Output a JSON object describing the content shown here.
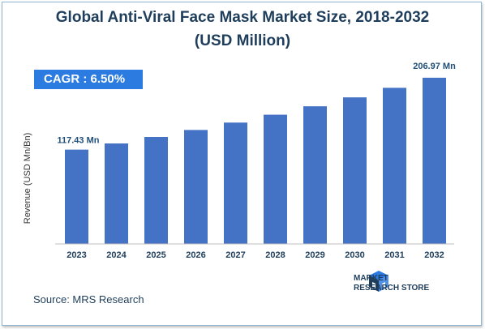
{
  "chart_data": {
    "type": "bar",
    "title": "Global Anti-Viral Face Mask Market Size, 2018-2032",
    "subtitle": "(USD Million)",
    "ylabel": "Revenue (USD Mn/Bn)",
    "xlabel": "",
    "categories": [
      "2023",
      "2024",
      "2025",
      "2026",
      "2027",
      "2028",
      "2029",
      "2030",
      "2031",
      "2032"
    ],
    "values": [
      117.43,
      125.1,
      133.2,
      141.9,
      151.1,
      160.9,
      171.4,
      182.5,
      194.4,
      206.97
    ],
    "data_labels": {
      "first": "117.43 Mn",
      "last": "206.97 Mn"
    },
    "ylim": [
      0,
      220
    ],
    "grid": false,
    "bar_color": "#4472c4"
  },
  "cagr_label": "CAGR :  6.50%",
  "source": "Source: MRS Research",
  "logo": {
    "line1": "MARKET",
    "line2": "RESEARCH STORE",
    "icon": "market-research-store-logo-icon"
  },
  "colors": {
    "title": "#1f3e5b",
    "cagr_bg": "#2b7be0",
    "label": "#1f4e79"
  }
}
